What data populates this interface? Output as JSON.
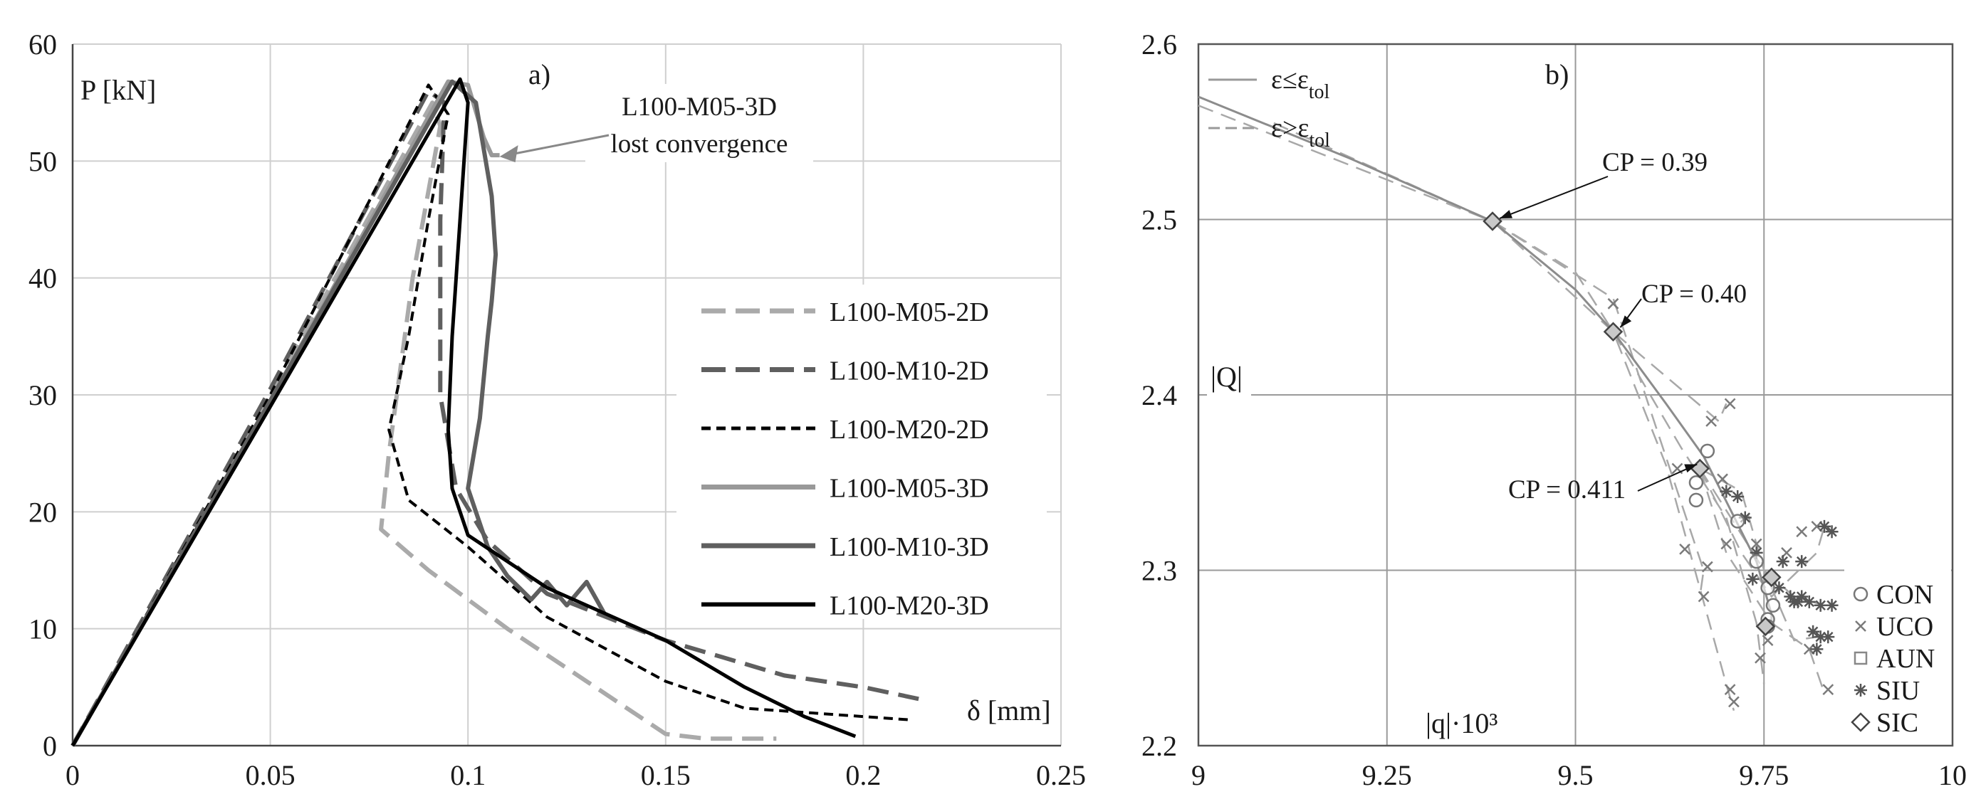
{
  "chart_data": [
    {
      "type": "line",
      "panel_label": "a)",
      "ylabel": "P [kN]",
      "xlabel": "δ [mm]",
      "xlim": [
        0,
        0.25
      ],
      "ylim": [
        0,
        60
      ],
      "x_ticks": [
        "0",
        "0.05",
        "0.1",
        "0.15",
        "0.2",
        "0.25"
      ],
      "y_ticks": [
        "0",
        "10",
        "20",
        "30",
        "40",
        "50",
        "60"
      ],
      "grid": true,
      "legend_position": "center-right",
      "annotation": {
        "line1": "L100-M05-3D",
        "line2": "lost convergence",
        "target": [
          0.108,
          50.5
        ]
      },
      "series": [
        {
          "name": "L100-M05-2D",
          "color": "#aaaaaa",
          "dash": "dashed",
          "width": 6,
          "points": [
            [
              0,
              0
            ],
            [
              0.05,
              30
            ],
            [
              0.091,
              55
            ],
            [
              0.093,
              53
            ],
            [
              0.086,
              40
            ],
            [
              0.08,
              25
            ],
            [
              0.078,
              18.5
            ],
            [
              0.09,
              15
            ],
            [
              0.11,
              10
            ],
            [
              0.13,
              5.5
            ],
            [
              0.15,
              1
            ],
            [
              0.16,
              0.6
            ],
            [
              0.178,
              0.6
            ]
          ]
        },
        {
          "name": "L100-M10-2D",
          "color": "#5f5f5f",
          "dash": "dashed",
          "width": 6,
          "points": [
            [
              0,
              0
            ],
            [
              0.05,
              30.5
            ],
            [
              0.09,
              56
            ],
            [
              0.094,
              55
            ],
            [
              0.093,
              45
            ],
            [
              0.093,
              30
            ],
            [
              0.097,
              22
            ],
            [
              0.105,
              17.5
            ],
            [
              0.12,
              13
            ],
            [
              0.15,
              9
            ],
            [
              0.18,
              6
            ],
            [
              0.2,
              5
            ],
            [
              0.214,
              4
            ]
          ]
        },
        {
          "name": "L100-M20-2D",
          "color": "#000000",
          "dash": "dotted",
          "width": 4,
          "points": [
            [
              0,
              0
            ],
            [
              0.05,
              30
            ],
            [
              0.09,
              56.5
            ],
            [
              0.095,
              54
            ],
            [
              0.09,
              45
            ],
            [
              0.085,
              35
            ],
            [
              0.08,
              27
            ],
            [
              0.085,
              21
            ],
            [
              0.1,
              17
            ],
            [
              0.12,
              11
            ],
            [
              0.15,
              5.5
            ],
            [
              0.17,
              3.2
            ],
            [
              0.212,
              2.2
            ]
          ]
        },
        {
          "name": "L100-M05-3D",
          "color": "#999999",
          "dash": "solid",
          "width": 6,
          "points": [
            [
              0,
              0
            ],
            [
              0.05,
              29.5
            ],
            [
              0.095,
              56.8
            ],
            [
              0.1,
              56.5
            ],
            [
              0.104,
              52
            ],
            [
              0.106,
              50.5
            ],
            [
              0.108,
              50.5
            ]
          ]
        },
        {
          "name": "L100-M10-3D",
          "color": "#5f5f5f",
          "dash": "solid",
          "width": 6,
          "points": [
            [
              0,
              0
            ],
            [
              0.05,
              29.5
            ],
            [
              0.096,
              56.8
            ],
            [
              0.102,
              55
            ],
            [
              0.106,
              47
            ],
            [
              0.107,
              42
            ],
            [
              0.106,
              38
            ],
            [
              0.105,
              35
            ],
            [
              0.103,
              28
            ],
            [
              0.1,
              22
            ],
            [
              0.105,
              17
            ],
            [
              0.11,
              14.5
            ],
            [
              0.113,
              13.5
            ],
            [
              0.116,
              12.5
            ],
            [
              0.12,
              14
            ],
            [
              0.125,
              12
            ],
            [
              0.13,
              14
            ],
            [
              0.135,
              11
            ]
          ]
        },
        {
          "name": "L100-M20-3D",
          "color": "#000000",
          "dash": "solid",
          "width": 5,
          "points": [
            [
              0,
              0
            ],
            [
              0.05,
              29
            ],
            [
              0.098,
              57
            ],
            [
              0.1,
              55
            ],
            [
              0.098,
              45
            ],
            [
              0.096,
              35
            ],
            [
              0.095,
              27
            ],
            [
              0.096,
              22
            ],
            [
              0.1,
              18
            ],
            [
              0.12,
              13.5
            ],
            [
              0.15,
              9
            ],
            [
              0.17,
              5
            ],
            [
              0.185,
              2.5
            ],
            [
              0.198,
              0.8
            ]
          ]
        }
      ]
    },
    {
      "type": "scatter",
      "panel_label": "b)",
      "ylabel": "|Q|",
      "xlabel": "|q|·10³",
      "xlim": [
        9,
        10
      ],
      "ylim": [
        2.2,
        2.6
      ],
      "x_ticks": [
        "9",
        "9.25",
        "9.5",
        "9.75",
        "10"
      ],
      "y_ticks": [
        "2.2",
        "2.3",
        "2.4",
        "2.5",
        "2.6"
      ],
      "grid": true,
      "line_legend": [
        {
          "base": "ε≤ε",
          "sub": "tol",
          "dash": "solid"
        },
        {
          "base": "ε>ε",
          "sub": "tol",
          "dash": "dashed"
        }
      ],
      "marker_legend": [
        {
          "label": "CON",
          "marker": "circle"
        },
        {
          "label": "UCO",
          "marker": "x"
        },
        {
          "label": "AUN",
          "marker": "square"
        },
        {
          "label": "SIU",
          "marker": "asterisk"
        },
        {
          "label": "SIC",
          "marker": "diamond"
        }
      ],
      "annotations": [
        {
          "text": "CP = 0.39",
          "target": [
            9.39,
            2.499
          ]
        },
        {
          "text": "CP = 0.40",
          "target": [
            9.55,
            2.436
          ]
        },
        {
          "text": "CP = 0.411",
          "target": [
            9.665,
            2.358
          ]
        }
      ],
      "main_path": [
        [
          9,
          2.57
        ],
        [
          9.2,
          2.535
        ],
        [
          9.39,
          2.499
        ],
        [
          9.5,
          2.46
        ],
        [
          9.55,
          2.436
        ],
        [
          9.62,
          2.395
        ],
        [
          9.67,
          2.365
        ],
        [
          9.74,
          2.305
        ],
        [
          9.76,
          2.275
        ],
        [
          9.76,
          2.268
        ]
      ],
      "dashed_paths": [
        [
          [
            9,
            2.565
          ],
          [
            9.39,
            2.499
          ],
          [
            9.55,
            2.455
          ],
          [
            9.67,
            2.3
          ],
          [
            9.665,
            2.285
          ]
        ],
        [
          [
            9.1,
            2.555
          ],
          [
            9.39,
            2.499
          ],
          [
            9.55,
            2.436
          ],
          [
            9.62,
            2.36
          ],
          [
            9.7,
            2.235
          ],
          [
            9.71,
            2.22
          ]
        ],
        [
          [
            9.39,
            2.499
          ],
          [
            9.5,
            2.47
          ],
          [
            9.55,
            2.436
          ],
          [
            9.69,
            2.385
          ],
          [
            9.7,
            2.395
          ]
        ],
        [
          [
            9.55,
            2.436
          ],
          [
            9.64,
            2.37
          ],
          [
            9.7,
            2.33
          ],
          [
            9.74,
            2.27
          ],
          [
            9.75,
            2.235
          ]
        ],
        [
          [
            9.665,
            2.358
          ],
          [
            9.72,
            2.31
          ],
          [
            9.76,
            2.285
          ],
          [
            9.82,
            2.31
          ],
          [
            9.83,
            2.325
          ]
        ],
        [
          [
            9.665,
            2.358
          ],
          [
            9.75,
            2.3
          ],
          [
            9.79,
            2.285
          ],
          [
            9.83,
            2.28
          ]
        ],
        [
          [
            9.665,
            2.358
          ],
          [
            9.7,
            2.31
          ],
          [
            9.76,
            2.27
          ],
          [
            9.81,
            2.255
          ],
          [
            9.83,
            2.23
          ]
        ],
        [
          [
            9.665,
            2.358
          ],
          [
            9.72,
            2.345
          ],
          [
            9.75,
            2.3
          ],
          [
            9.79,
            2.26
          ],
          [
            9.82,
            2.262
          ]
        ]
      ],
      "markers": {
        "circle": [
          [
            9.675,
            2.368
          ],
          [
            9.66,
            2.35
          ],
          [
            9.66,
            2.34
          ],
          [
            9.715,
            2.328
          ],
          [
            9.74,
            2.305
          ],
          [
            9.755,
            2.29
          ],
          [
            9.762,
            2.28
          ],
          [
            9.755,
            2.272
          ],
          [
            9.755,
            2.268
          ]
        ],
        "x": [
          [
            9.55,
            2.452
          ],
          [
            9.68,
            2.385
          ],
          [
            9.705,
            2.395
          ],
          [
            9.695,
            2.352
          ],
          [
            9.635,
            2.358
          ],
          [
            9.675,
            2.302
          ],
          [
            9.67,
            2.285
          ],
          [
            9.7,
            2.315
          ],
          [
            9.645,
            2.312
          ],
          [
            9.71,
            2.225
          ],
          [
            9.705,
            2.232
          ],
          [
            9.745,
            2.25
          ],
          [
            9.755,
            2.26
          ],
          [
            9.78,
            2.31
          ],
          [
            9.8,
            2.322
          ],
          [
            9.82,
            2.325
          ],
          [
            9.835,
            2.232
          ],
          [
            9.81,
            2.255
          ],
          [
            9.79,
            2.282
          ],
          [
            9.74,
            2.315
          ]
        ],
        "asterisk": [
          [
            9.7,
            2.345
          ],
          [
            9.715,
            2.342
          ],
          [
            9.725,
            2.33
          ],
          [
            9.74,
            2.31
          ],
          [
            9.735,
            2.295
          ],
          [
            9.76,
            2.295
          ],
          [
            9.77,
            2.29
          ],
          [
            9.785,
            2.285
          ],
          [
            9.795,
            2.282
          ],
          [
            9.8,
            2.285
          ],
          [
            9.81,
            2.282
          ],
          [
            9.825,
            2.28
          ],
          [
            9.84,
            2.28
          ],
          [
            9.815,
            2.265
          ],
          [
            9.825,
            2.262
          ],
          [
            9.835,
            2.262
          ],
          [
            9.82,
            2.255
          ],
          [
            9.83,
            2.325
          ],
          [
            9.84,
            2.322
          ],
          [
            9.79,
            2.282
          ],
          [
            9.8,
            2.305
          ],
          [
            9.775,
            2.305
          ]
        ],
        "diamond": [
          [
            9.39,
            2.499
          ],
          [
            9.55,
            2.436
          ],
          [
            9.665,
            2.358
          ],
          [
            9.76,
            2.296
          ],
          [
            9.752,
            2.268
          ]
        ]
      }
    }
  ]
}
